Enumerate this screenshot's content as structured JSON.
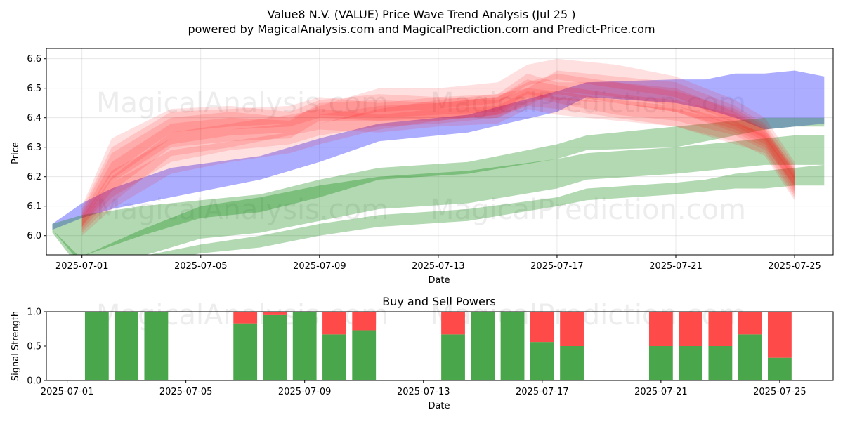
{
  "chart_data": [
    {
      "type": "area",
      "title": "Value8 N.V. (VALUE) Price Wave Trend Analysis (Jul 25 )",
      "subtitle": "powered by MagicalAnalysis.com and MagicalPrediction.com and Predict-Price.com",
      "xlabel": "Date",
      "ylabel": "Price",
      "ylim": [
        5.935,
        6.635
      ],
      "xlim": [
        -1.2,
        25.3
      ],
      "xticks": [
        {
          "pos": 0,
          "label": "2025-07-01"
        },
        {
          "pos": 4,
          "label": "2025-07-05"
        },
        {
          "pos": 8,
          "label": "2025-07-09"
        },
        {
          "pos": 12,
          "label": "2025-07-13"
        },
        {
          "pos": 16,
          "label": "2025-07-17"
        },
        {
          "pos": 20,
          "label": "2025-07-21"
        },
        {
          "pos": 24,
          "label": "2025-07-25"
        }
      ],
      "yticks": [
        6.0,
        6.1,
        6.2,
        6.3,
        6.4,
        6.5,
        6.6
      ],
      "grid": true,
      "watermarks": [
        "MagicalAnalysis.com",
        "MagicalPrediction.com",
        "MagicalAnalysis.com",
        "MagicalPrediction.com"
      ],
      "series": [
        {
          "name": "blue-band",
          "color": "#0000ff",
          "opacity": 0.32,
          "x": [
            -1,
            0,
            1,
            3,
            6,
            8,
            10,
            13,
            16,
            17,
            20,
            21,
            22,
            23,
            24,
            25
          ],
          "upper": [
            6.04,
            6.11,
            6.16,
            6.23,
            6.27,
            6.33,
            6.38,
            6.41,
            6.49,
            6.52,
            6.53,
            6.53,
            6.55,
            6.55,
            6.56,
            6.54
          ],
          "lower": [
            6.02,
            6.06,
            6.09,
            6.13,
            6.19,
            6.25,
            6.32,
            6.35,
            6.42,
            6.47,
            6.45,
            6.43,
            6.4,
            6.36,
            6.37,
            6.38
          ]
        },
        {
          "name": "green-band-upper",
          "color": "#008000",
          "opacity": 0.3,
          "x": [
            -1,
            0,
            2,
            4,
            6,
            8,
            10,
            13,
            16,
            17,
            20,
            21,
            22,
            23,
            24,
            25
          ],
          "upper": [
            6.04,
            6.07,
            6.1,
            6.12,
            6.14,
            6.19,
            6.23,
            6.25,
            6.31,
            6.34,
            6.37,
            6.38,
            6.39,
            6.4,
            6.4,
            6.4
          ],
          "lower": [
            6.03,
            5.93,
            6.0,
            6.06,
            6.08,
            6.13,
            6.19,
            6.21,
            6.26,
            6.29,
            6.3,
            6.32,
            6.34,
            6.36,
            6.37,
            6.37
          ]
        },
        {
          "name": "green-band-mid",
          "color": "#008000",
          "opacity": 0.3,
          "x": [
            -1,
            0,
            2,
            4,
            6,
            8,
            10,
            13,
            16,
            17,
            20,
            21,
            22,
            23,
            24,
            25
          ],
          "upper": [
            6.03,
            5.93,
            6.02,
            6.1,
            6.13,
            6.17,
            6.2,
            6.22,
            6.26,
            6.28,
            6.3,
            6.31,
            6.32,
            6.33,
            6.34,
            6.34
          ],
          "lower": [
            6.02,
            5.9,
            5.93,
            5.99,
            6.01,
            6.05,
            6.09,
            6.11,
            6.16,
            6.19,
            6.21,
            6.22,
            6.23,
            6.24,
            6.24,
            6.24
          ]
        },
        {
          "name": "green-band-lower",
          "color": "#008000",
          "opacity": 0.3,
          "x": [
            -1,
            0,
            2,
            4,
            6,
            8,
            10,
            13,
            16,
            17,
            20,
            21,
            22,
            23,
            24,
            25
          ],
          "upper": [
            6.02,
            5.92,
            5.93,
            5.97,
            6.0,
            6.04,
            6.07,
            6.09,
            6.13,
            6.16,
            6.18,
            6.19,
            6.21,
            6.22,
            6.23,
            6.24
          ],
          "lower": [
            6.01,
            5.88,
            5.9,
            5.94,
            5.96,
            6.0,
            6.03,
            6.05,
            6.1,
            6.12,
            6.14,
            6.15,
            6.16,
            6.16,
            6.17,
            6.17
          ]
        },
        {
          "name": "red-band-1",
          "color": "#ff0000",
          "opacity": 0.12,
          "x": [
            0,
            1,
            3,
            5,
            7,
            8,
            10,
            12,
            14,
            15,
            16,
            18,
            20,
            22,
            23,
            24
          ],
          "upper": [
            6.1,
            6.33,
            6.43,
            6.44,
            6.42,
            6.46,
            6.48,
            6.47,
            6.48,
            6.55,
            6.52,
            6.52,
            6.5,
            6.42,
            6.36,
            6.23
          ],
          "lower": [
            6.05,
            6.21,
            6.35,
            6.37,
            6.38,
            6.41,
            6.4,
            6.41,
            6.42,
            6.48,
            6.46,
            6.45,
            6.42,
            6.35,
            6.3,
            6.17
          ]
        },
        {
          "name": "red-band-2",
          "color": "#ff0000",
          "opacity": 0.12,
          "x": [
            0,
            1,
            3,
            5,
            7,
            8,
            10,
            12,
            14,
            15,
            16,
            18,
            20,
            22,
            23,
            24
          ],
          "upper": [
            6.08,
            6.28,
            6.4,
            6.42,
            6.4,
            6.44,
            6.5,
            6.5,
            6.52,
            6.58,
            6.6,
            6.58,
            6.54,
            6.46,
            6.4,
            6.25
          ],
          "lower": [
            6.03,
            6.18,
            6.31,
            6.34,
            6.35,
            6.38,
            6.42,
            6.43,
            6.45,
            6.51,
            6.53,
            6.5,
            6.47,
            6.38,
            6.33,
            6.19
          ]
        },
        {
          "name": "red-band-3",
          "color": "#ff0000",
          "opacity": 0.12,
          "x": [
            0,
            1,
            3,
            5,
            7,
            8,
            10,
            12,
            14,
            15,
            16,
            18,
            20,
            22,
            23,
            24
          ],
          "upper": [
            6.06,
            6.22,
            6.33,
            6.36,
            6.38,
            6.41,
            6.44,
            6.45,
            6.47,
            6.52,
            6.55,
            6.52,
            6.49,
            6.43,
            6.37,
            6.22
          ],
          "lower": [
            6.02,
            6.13,
            6.25,
            6.29,
            6.31,
            6.34,
            6.37,
            6.38,
            6.4,
            6.45,
            6.48,
            6.45,
            6.42,
            6.36,
            6.31,
            6.15
          ]
        },
        {
          "name": "red-band-4",
          "color": "#ff0000",
          "opacity": 0.12,
          "x": [
            0,
            1,
            3,
            5,
            7,
            8,
            10,
            12,
            14,
            15,
            16,
            18,
            20,
            22,
            23,
            24
          ],
          "upper": [
            6.04,
            6.18,
            6.29,
            6.32,
            6.35,
            6.38,
            6.43,
            6.46,
            6.48,
            6.5,
            6.49,
            6.46,
            6.44,
            6.39,
            6.34,
            6.2
          ],
          "lower": [
            6.0,
            6.09,
            6.21,
            6.25,
            6.28,
            6.31,
            6.36,
            6.39,
            6.41,
            6.44,
            6.43,
            6.4,
            6.37,
            6.32,
            6.27,
            6.12
          ]
        },
        {
          "name": "red-band-5",
          "color": "#ff0000",
          "opacity": 0.12,
          "x": [
            0,
            1,
            3,
            5,
            7,
            8,
            10,
            12,
            14,
            15,
            16,
            18,
            20,
            22,
            23,
            24
          ],
          "upper": [
            6.07,
            6.25,
            6.38,
            6.4,
            6.39,
            6.45,
            6.46,
            6.45,
            6.47,
            6.53,
            6.51,
            6.48,
            6.46,
            6.41,
            6.36,
            6.21
          ],
          "lower": [
            6.03,
            6.15,
            6.3,
            6.32,
            6.33,
            6.39,
            6.39,
            6.39,
            6.41,
            6.47,
            6.45,
            6.41,
            6.39,
            6.34,
            6.29,
            6.14
          ]
        },
        {
          "name": "red-band-6",
          "color": "#ff0000",
          "opacity": 0.12,
          "x": [
            0,
            1,
            3,
            5,
            7,
            8,
            10,
            12,
            14,
            15,
            16,
            18,
            20,
            22,
            23,
            24
          ],
          "upper": [
            6.09,
            6.3,
            6.42,
            6.43,
            6.44,
            6.47,
            6.45,
            6.47,
            6.46,
            6.5,
            6.56,
            6.54,
            6.52,
            6.44,
            6.38,
            6.24
          ],
          "lower": [
            6.04,
            6.19,
            6.33,
            6.36,
            6.37,
            6.4,
            6.39,
            6.4,
            6.4,
            6.44,
            6.49,
            6.47,
            6.44,
            6.37,
            6.32,
            6.16
          ]
        },
        {
          "name": "red-band-7",
          "color": "#ff0000",
          "opacity": 0.12,
          "x": [
            0,
            1,
            3,
            5,
            7,
            8,
            10,
            12,
            14,
            15,
            16,
            18,
            20,
            22,
            23,
            24
          ],
          "upper": [
            6.05,
            6.2,
            6.35,
            6.38,
            6.41,
            6.43,
            6.41,
            6.43,
            6.44,
            6.49,
            6.47,
            6.45,
            6.43,
            6.38,
            6.35,
            6.22
          ],
          "lower": [
            6.01,
            6.11,
            6.27,
            6.3,
            6.34,
            6.36,
            6.35,
            6.37,
            6.38,
            6.43,
            6.41,
            6.39,
            6.37,
            6.31,
            6.28,
            6.13
          ]
        }
      ]
    },
    {
      "type": "bar",
      "title": "Buy and Sell Powers",
      "xlabel": "Date",
      "ylabel": "Signal Strength",
      "ylim": [
        0,
        1
      ],
      "xlim": [
        -1.2,
        25.3
      ],
      "yticks": [
        {
          "value": 0.0,
          "label": "0.0"
        },
        {
          "value": 0.5,
          "label": "0.5"
        },
        {
          "value": 1.0,
          "label": "1.0"
        }
      ],
      "xticks": [
        {
          "pos": -0.5,
          "label": "2025-07-01"
        },
        {
          "pos": 3.5,
          "label": "2025-07-05"
        },
        {
          "pos": 7.5,
          "label": "2025-07-09"
        },
        {
          "pos": 11.5,
          "label": "2025-07-13"
        },
        {
          "pos": 15.5,
          "label": "2025-07-17"
        },
        {
          "pos": 19.5,
          "label": "2025-07-21"
        },
        {
          "pos": 23.5,
          "label": "2025-07-25"
        }
      ],
      "buy_color": "#4aa64a",
      "sell_color": "#ff4a4a",
      "bars": [
        {
          "pos": 0.5,
          "buy": 1.0,
          "sell": 0.0
        },
        {
          "pos": 1.5,
          "buy": 1.0,
          "sell": 0.0
        },
        {
          "pos": 2.5,
          "buy": 1.0,
          "sell": 0.0
        },
        {
          "pos": 5.5,
          "buy": 0.83,
          "sell": 0.17
        },
        {
          "pos": 6.5,
          "buy": 0.95,
          "sell": 0.05
        },
        {
          "pos": 7.5,
          "buy": 1.0,
          "sell": 0.0
        },
        {
          "pos": 8.5,
          "buy": 0.67,
          "sell": 0.33
        },
        {
          "pos": 9.5,
          "buy": 0.73,
          "sell": 0.27
        },
        {
          "pos": 12.5,
          "buy": 0.67,
          "sell": 0.33
        },
        {
          "pos": 13.5,
          "buy": 1.0,
          "sell": 0.0
        },
        {
          "pos": 14.5,
          "buy": 1.0,
          "sell": 0.0
        },
        {
          "pos": 15.5,
          "buy": 0.56,
          "sell": 0.44
        },
        {
          "pos": 16.5,
          "buy": 0.5,
          "sell": 0.5
        },
        {
          "pos": 19.5,
          "buy": 0.5,
          "sell": 0.5
        },
        {
          "pos": 20.5,
          "buy": 0.5,
          "sell": 0.5
        },
        {
          "pos": 21.5,
          "buy": 0.5,
          "sell": 0.5
        },
        {
          "pos": 22.5,
          "buy": 0.67,
          "sell": 0.33
        },
        {
          "pos": 23.5,
          "buy": 0.33,
          "sell": 0.67
        }
      ],
      "watermarks": [
        "MagicalAnalysis.com",
        "MagicalPrediction.com"
      ]
    }
  ]
}
